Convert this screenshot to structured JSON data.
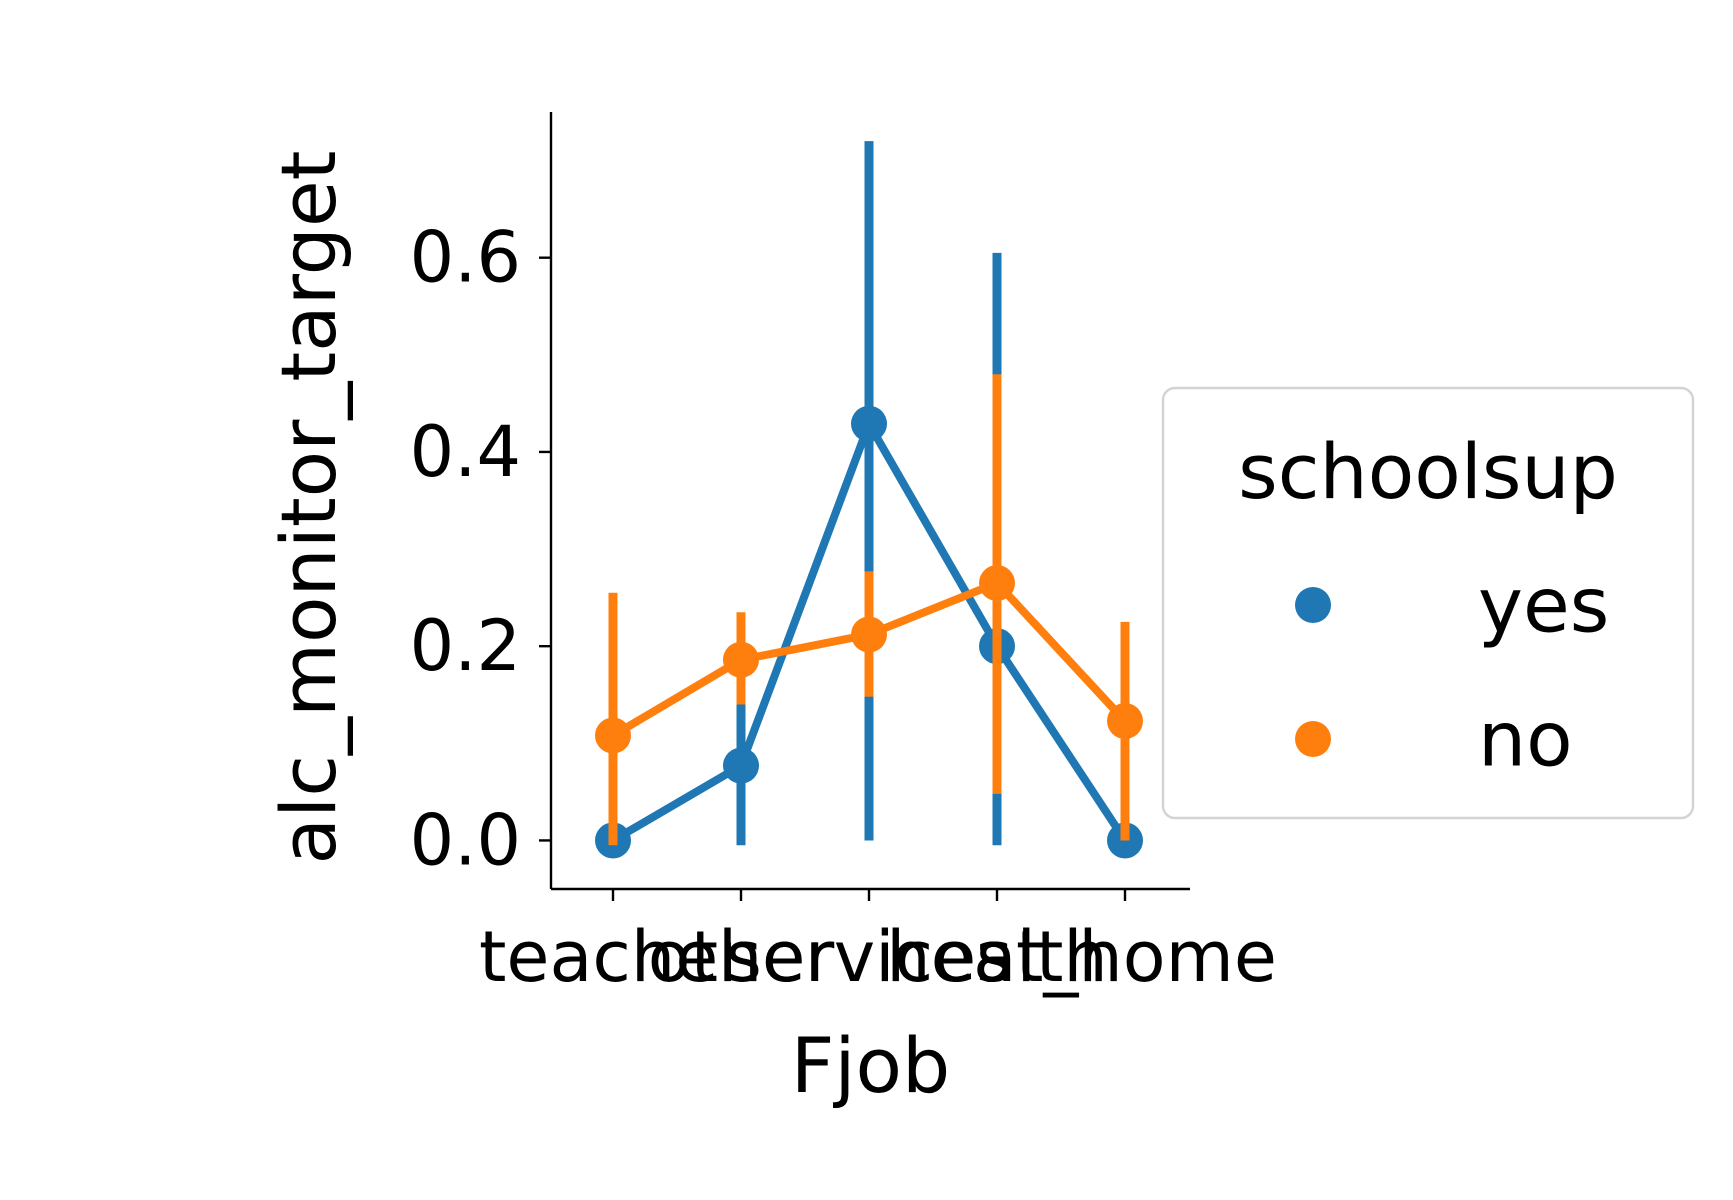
{
  "chart_data": {
    "type": "line",
    "xlabel": "Fjob",
    "ylabel": "alc_monitor_target",
    "categories": [
      "teacher",
      "other",
      "services",
      "health",
      "at_home"
    ],
    "ylim": [
      -0.05,
      0.75
    ],
    "yticks": [
      0.0,
      0.2,
      0.4,
      0.6
    ],
    "ytick_labels": [
      "0.0",
      "0.2",
      "0.4",
      "0.6"
    ],
    "legend": {
      "title": "schoolsup",
      "position": "center-right outside"
    },
    "grid": false,
    "series": [
      {
        "name": "yes",
        "color": "#1f77b4",
        "values": [
          0.0,
          0.077,
          0.429,
          0.2,
          0.0
        ],
        "ci_low": [
          0.0,
          -0.005,
          0.0,
          -0.005,
          0.0
        ],
        "ci_high": [
          0.0,
          0.14,
          0.72,
          0.605,
          0.0
        ]
      },
      {
        "name": "no",
        "color": "#ff7f0e",
        "values": [
          0.108,
          0.186,
          0.212,
          0.265,
          0.123
        ],
        "ci_low": [
          -0.005,
          0.14,
          0.148,
          0.048,
          0.0
        ],
        "ci_high": [
          0.255,
          0.235,
          0.277,
          0.48,
          0.225
        ]
      }
    ]
  }
}
